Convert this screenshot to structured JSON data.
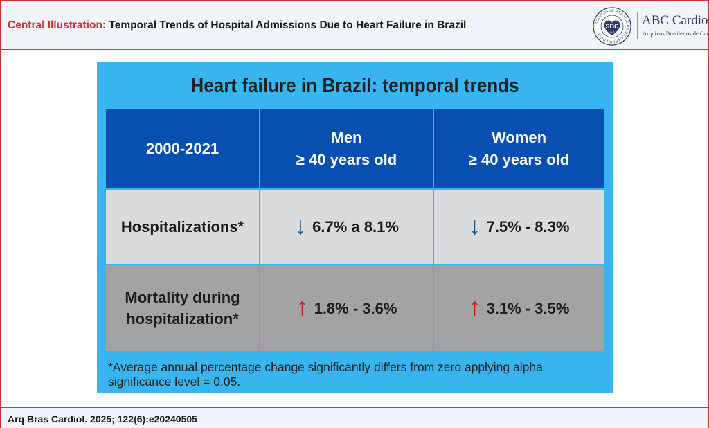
{
  "header": {
    "label": "Central Illustration:",
    "title": "Temporal Trends of Hospital Admissions Due to Heart Failure in Brazil"
  },
  "logo": {
    "seal_ring_text": "SOCIEDADE BRASILEIRA DE CARDIOLOGIA",
    "seal_abbr": "SBC",
    "seal_year": "1943",
    "journal_name": "ABC Cardiol",
    "journal_subtitle": "Arquivos Brasileiros de Cardiologia"
  },
  "panel": {
    "title": "Heart failure in Brazil: temporal trends",
    "columns": [
      "2000-2021",
      "Men\n≥ 40 years old",
      "Women\n≥ 40 years old"
    ],
    "rows": [
      {
        "label": "Hospitalizations*",
        "men": {
          "direction": "down",
          "value": "6.7% a 8.1%"
        },
        "women": {
          "direction": "down",
          "value": "7.5% - 8.3%"
        }
      },
      {
        "label": "Mortality during\nhospitalization*",
        "men": {
          "direction": "up",
          "value": "1.8% - 3.6%"
        },
        "women": {
          "direction": "up",
          "value": "3.1% - 3.5%"
        }
      }
    ],
    "footnote": "*Average annual percentage change significantly differs from zero applying alpha significance level = 0.05."
  },
  "footer": {
    "citation": "Arq Bras Cardiol. 2025; 122(6):e20240505"
  },
  "colors": {
    "accent_red": "#c9353a",
    "panel_blue": "#38b4ee",
    "header_blue": "#0750b2",
    "row_light_gray": "#dadbdc",
    "row_dark_gray": "#a3a3a3",
    "arrow_down": "#1b5c8c",
    "arrow_up": "#c41c1c"
  },
  "icons": {
    "down": "down-arrow-icon",
    "up": "up-arrow-icon"
  }
}
